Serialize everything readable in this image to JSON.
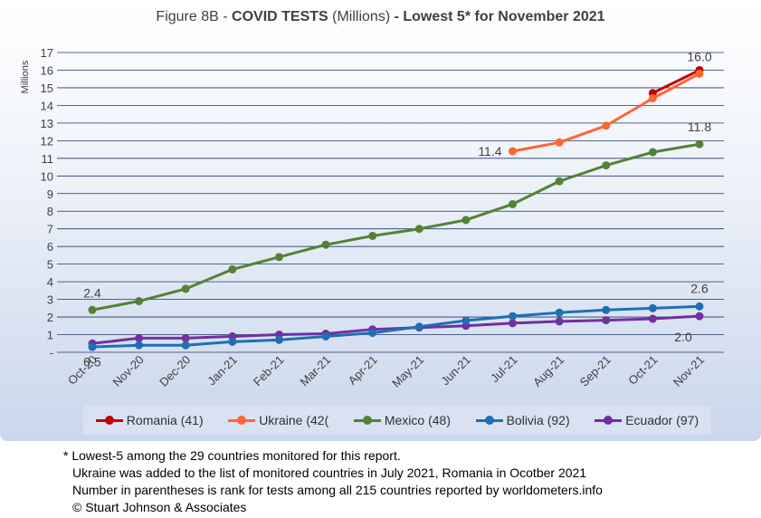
{
  "title": {
    "prefix": "Figure 8B - ",
    "bold1": "COVID TESTS",
    "mid": " (Millions) ",
    "bold2": "- Lowest 5* for November 2021"
  },
  "footnotes": [
    "* Lowest-5 among the 29 countries monitored for this report.",
    "Ukraine was added to the list of monitored countries in July 2021, Romania in Ocotber 2021",
    "Number in parentheses is rank for tests among all 215 countries reported by worldometers.info",
    "© Stuart Johnson & Associates"
  ],
  "chart_data": {
    "type": "line",
    "title": "Figure 8B - COVID TESTS (Millions) - Lowest 5* for November 2021",
    "ylabel": "Millions",
    "xlabel": "",
    "ylim": [
      0,
      17
    ],
    "yticks": [
      "-",
      "1",
      "2",
      "3",
      "4",
      "5",
      "6",
      "7",
      "8",
      "9",
      "10",
      "11",
      "12",
      "13",
      "14",
      "15",
      "16",
      "17"
    ],
    "categories": [
      "Oct-20",
      "Nov-20",
      "Dec-20",
      "Jan-21",
      "Feb-21",
      "Mar-21",
      "Apr-21",
      "May-21",
      "Jun-21",
      "Jul-21",
      "Aug-21",
      "Sep-21",
      "Oct-21",
      "Nov-21"
    ],
    "grid": true,
    "legend_position": "bottom",
    "series": [
      {
        "name": "Romania (41)",
        "color": "#c00000",
        "values": [
          null,
          null,
          null,
          null,
          null,
          null,
          null,
          null,
          null,
          null,
          null,
          null,
          14.7,
          16.0
        ]
      },
      {
        "name": "Ukraine (42(",
        "color": "#ff6633",
        "values": [
          null,
          null,
          null,
          null,
          null,
          null,
          null,
          null,
          null,
          11.4,
          11.9,
          12.85,
          14.4,
          15.8
        ]
      },
      {
        "name": "Mexico (48)",
        "color": "#548235",
        "values": [
          2.4,
          2.9,
          3.6,
          4.7,
          5.4,
          6.1,
          6.6,
          7.0,
          7.5,
          8.4,
          9.7,
          10.6,
          11.35,
          11.8
        ]
      },
      {
        "name": "Bolivia (92)",
        "color": "#1f6fb5",
        "values": [
          0.3,
          0.4,
          0.4,
          0.6,
          0.7,
          0.9,
          1.1,
          1.45,
          1.8,
          2.05,
          2.25,
          2.4,
          2.5,
          2.6
        ]
      },
      {
        "name": "Ecuador (97)",
        "color": "#7030a0",
        "values": [
          0.5,
          0.8,
          0.8,
          0.9,
          1.0,
          1.05,
          1.3,
          1.4,
          1.5,
          1.65,
          1.75,
          1.82,
          1.9,
          2.05
        ]
      }
    ],
    "annotations": [
      {
        "text": "16.0",
        "series": "Romania (41)",
        "index": 13
      },
      {
        "text": "11.4",
        "series": "Ukraine (42(",
        "index": 9
      },
      {
        "text": "11.8",
        "series": "Mexico (48)",
        "index": 13
      },
      {
        "text": "2.4",
        "series": "Mexico (48)",
        "index": 0
      },
      {
        "text": "2.6",
        "series": "Bolivia (92)",
        "index": 13
      },
      {
        "text": "2.0",
        "series": "Ecuador (97)",
        "index": 13
      },
      {
        "text": "0.5",
        "series": "Ecuador (97)",
        "index": 0
      }
    ]
  }
}
